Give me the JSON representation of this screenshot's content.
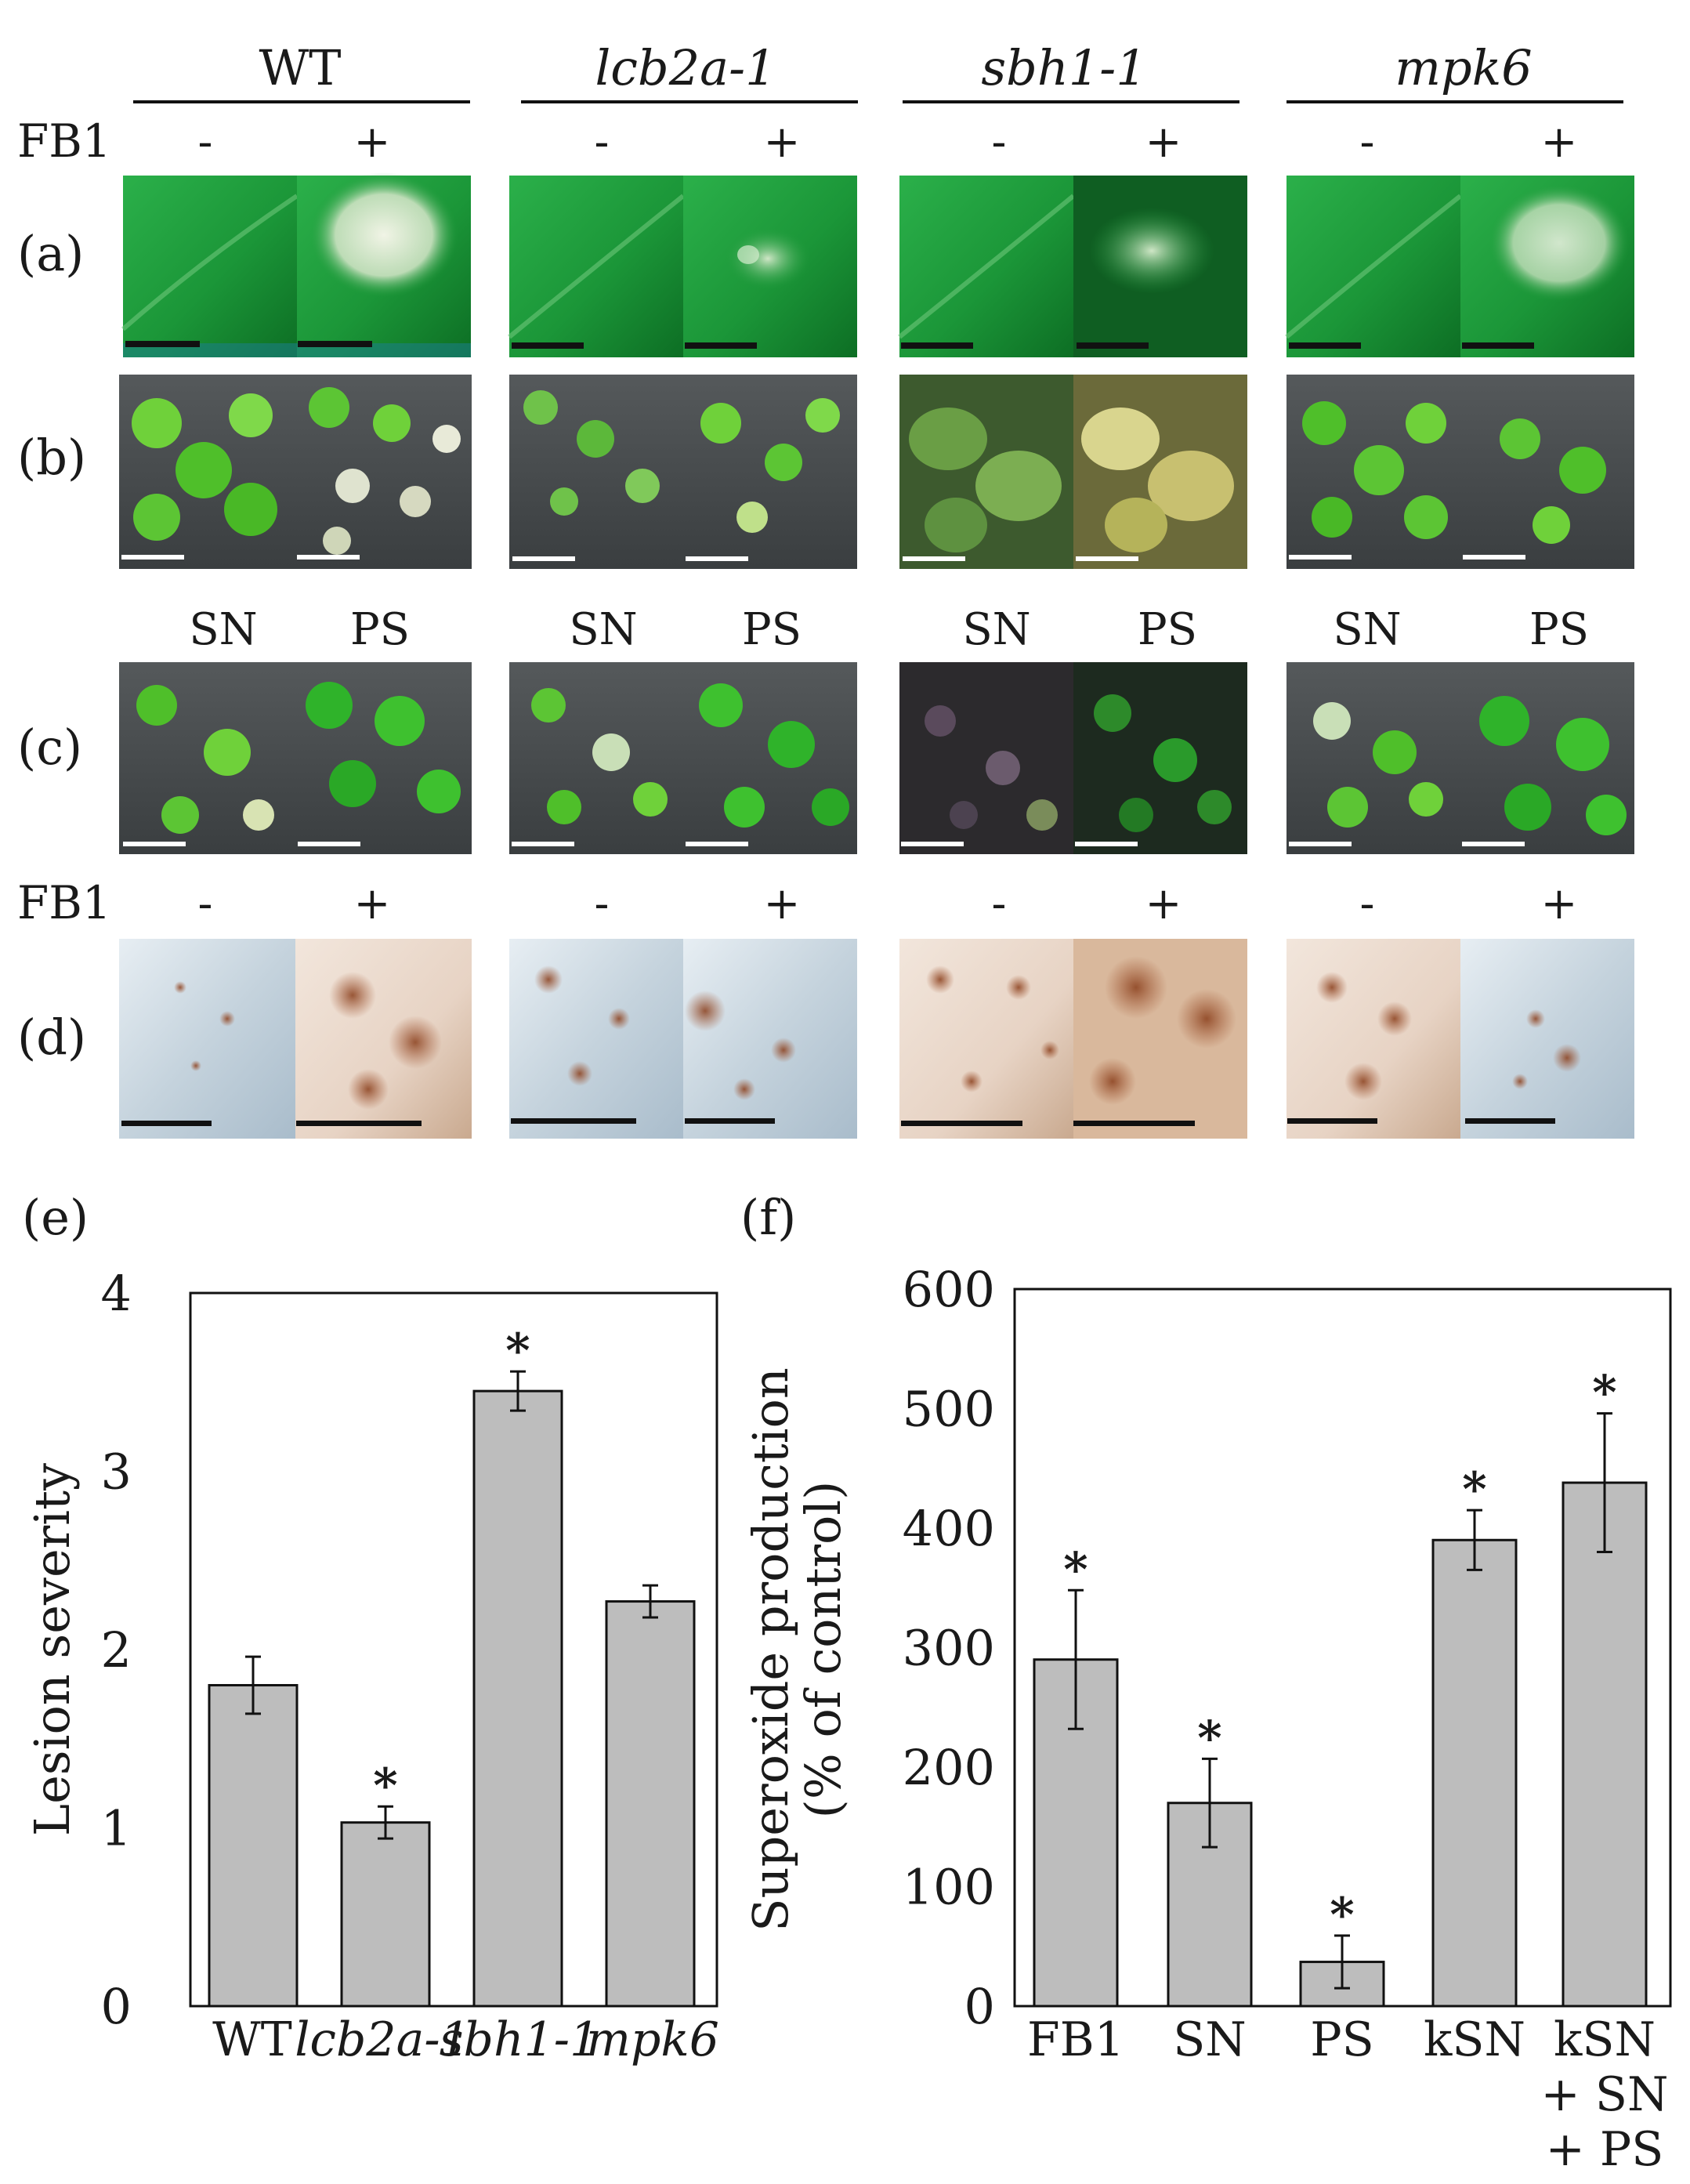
{
  "header": {
    "genotypes": [
      {
        "label": "WT",
        "italic": false
      },
      {
        "label": "lcb2a-1",
        "italic": true
      },
      {
        "label": "sbh1-1",
        "italic": true
      },
      {
        "label": "mpk6",
        "italic": true
      }
    ],
    "row_label_fb1": "FB1",
    "minus": "-",
    "plus": "+",
    "sn": "SN",
    "ps": "PS"
  },
  "panel_labels": {
    "a": "(a)",
    "b": "(b)",
    "c": "(c)",
    "d": "(d)",
    "e": "(e)",
    "f": "(f)"
  },
  "photo_colors": {
    "leaf_green": "#1f9a3a",
    "leaf_dark": "#0f6a22",
    "lesion": "#e8eedb",
    "seedling_bg": "#454a4c",
    "seedling_green": "#4fbf2a",
    "bleached": "#d6d9c0",
    "stain_bg": "#c9d6e0",
    "stain_brown": "#a0522d",
    "scale_black": "#111111",
    "scale_white": "#ffffff"
  },
  "chart_data": [
    {
      "type": "bar",
      "panel": "(e)",
      "categories": [
        "WT",
        "lcb2a-1",
        "sbh1-1",
        "mpk6"
      ],
      "category_italic": [
        false,
        true,
        true,
        true
      ],
      "values": [
        1.8,
        1.03,
        3.45,
        2.27
      ],
      "errors": [
        0.16,
        0.09,
        0.11,
        0.09
      ],
      "significant": [
        false,
        true,
        true,
        false
      ],
      "significance_mark": "*",
      "xlabel": "",
      "ylabel": "Lesion severity",
      "ylim": [
        0,
        4
      ],
      "yticks": [
        "0",
        "1",
        "2",
        "3",
        "4"
      ],
      "grid": false,
      "bar_color": "#bdbdbd"
    },
    {
      "type": "bar",
      "panel": "(f)",
      "categories": [
        "FB1",
        "SN",
        "PS",
        "kSN",
        "kSN + SN + PS"
      ],
      "category_lines": [
        [
          "FB1"
        ],
        [
          "SN"
        ],
        [
          "PS"
        ],
        [
          "kSN"
        ],
        [
          "kSN",
          "+ SN",
          "+ PS"
        ]
      ],
      "values": [
        290,
        170,
        37,
        390,
        438
      ],
      "errors": [
        58,
        37,
        22,
        25,
        58
      ],
      "significant": [
        true,
        true,
        true,
        true,
        true
      ],
      "significance_mark": "*",
      "xlabel": "",
      "ylabel": "Superoxide production",
      "ylabel2": "(% of control)",
      "ylim": [
        0,
        600
      ],
      "yticks": [
        "0",
        "100",
        "200",
        "300",
        "400",
        "500",
        "600"
      ],
      "grid": false,
      "bar_color": "#bdbdbd"
    }
  ]
}
